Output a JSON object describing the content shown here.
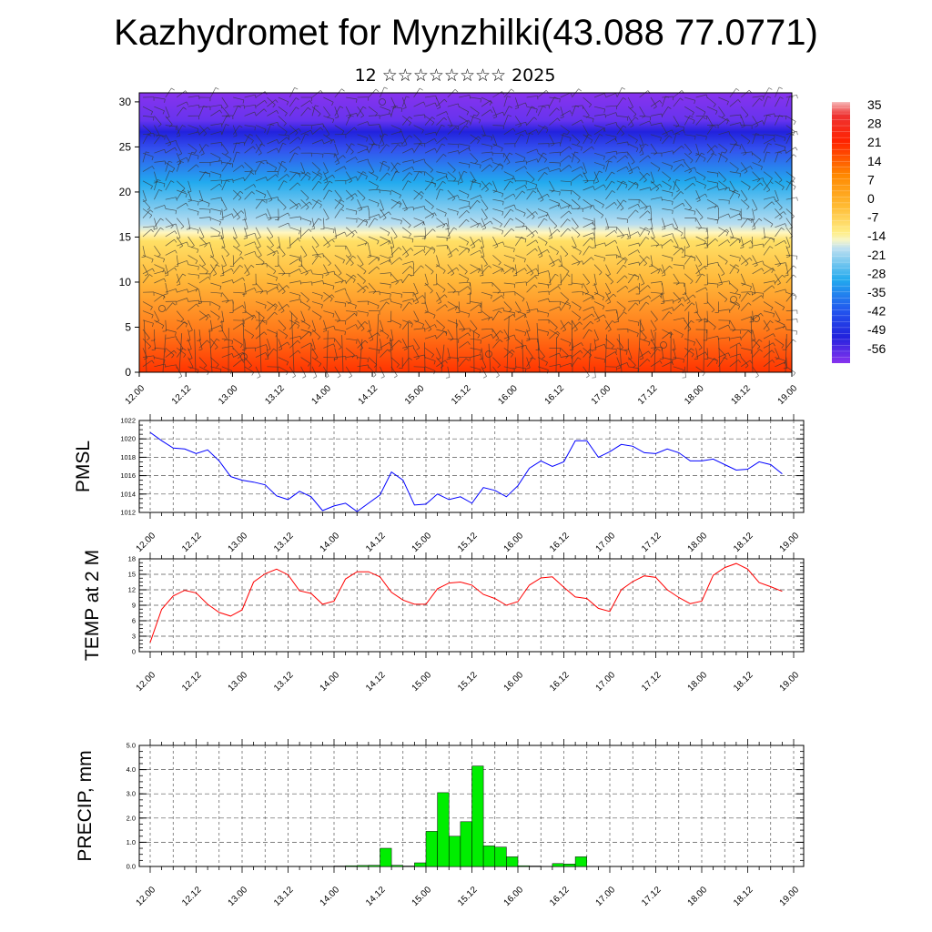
{
  "header": {
    "title": "Kazhydromet for Mynzhilki(43.088 77.0771)",
    "subtitle": "12 ☆☆☆☆☆☆☆☆ 2025"
  },
  "time_ticks": [
    "12.00",
    "12.12",
    "13.00",
    "13.12",
    "14.00",
    "14.12",
    "15.00",
    "15.12",
    "16.00",
    "16.12",
    "17.00",
    "17.12",
    "18.00",
    "18.12",
    "19.00"
  ],
  "chart_data": [
    {
      "type": "heatmap",
      "title": "",
      "xlabel": "",
      "ylabel": "",
      "ylim": [
        0,
        31
      ],
      "yticks": [
        "0",
        "5",
        "10",
        "15",
        "20",
        "25",
        "30"
      ],
      "x_categories": [
        "12.00",
        "12.12",
        "13.00",
        "13.12",
        "14.00",
        "14.12",
        "15.00",
        "15.12",
        "16.00",
        "16.12",
        "17.00",
        "17.12",
        "18.00",
        "18.12",
        "19.00"
      ],
      "colorbar": {
        "labels": [
          "35",
          "28",
          "21",
          "14",
          "7",
          "0",
          "-7",
          "-14",
          "-21",
          "-28",
          "-35",
          "-42",
          "-49",
          "-56"
        ],
        "range": [
          -60,
          38
        ]
      },
      "overlay": "wind barbs",
      "colors": {
        "warm": "#ff3300",
        "mid": "#ffe066",
        "cold": "#22aaee",
        "coldest": "#8833ee"
      }
    },
    {
      "type": "line",
      "ylabel": "PMSL",
      "ylim": [
        1012,
        1022
      ],
      "yticks": [
        "1012",
        "1014",
        "1016",
        "1018",
        "1020",
        "1022"
      ],
      "grid": true,
      "color": "#0000ff",
      "x": [
        0,
        3,
        6,
        9,
        12,
        15,
        18,
        21,
        24,
        27,
        30,
        33,
        36,
        39,
        42,
        45,
        48,
        51,
        54,
        57,
        60,
        63,
        66,
        69,
        72,
        75,
        78,
        81,
        84,
        87,
        90,
        93,
        96,
        99,
        102,
        105,
        108,
        111,
        114,
        117,
        120,
        123,
        126,
        129,
        132,
        135,
        138,
        141,
        144,
        147,
        150,
        153,
        156,
        159,
        162,
        165
      ],
      "values": [
        1020.7,
        1019.8,
        1019.0,
        1018.9,
        1018.4,
        1018.8,
        1017.6,
        1015.9,
        1015.5,
        1015.3,
        1015.0,
        1013.8,
        1013.4,
        1014.3,
        1013.7,
        1012.2,
        1012.7,
        1013.0,
        1012.1,
        1013.0,
        1013.9,
        1016.4,
        1015.5,
        1012.8,
        1012.9,
        1014.0,
        1013.4,
        1013.7,
        1013.0,
        1014.7,
        1014.4,
        1013.7,
        1014.9,
        1016.8,
        1017.6,
        1017.0,
        1017.5,
        1019.8,
        1019.8,
        1018.0,
        1018.6,
        1019.4,
        1019.2,
        1018.5,
        1018.4,
        1018.9,
        1018.5,
        1017.6,
        1017.6,
        1017.8,
        1017.2,
        1016.6,
        1016.7,
        1017.5,
        1017.2,
        1016.2
      ]
    },
    {
      "type": "line",
      "ylabel": "TEMP at 2 M",
      "ylim": [
        0,
        18
      ],
      "yticks": [
        "0",
        "3",
        "6",
        "9",
        "12",
        "15",
        "18"
      ],
      "grid": true,
      "color": "#ff0000",
      "x": [
        0,
        3,
        6,
        9,
        12,
        15,
        18,
        21,
        24,
        27,
        30,
        33,
        36,
        39,
        42,
        45,
        48,
        51,
        54,
        57,
        60,
        63,
        66,
        69,
        72,
        75,
        78,
        81,
        84,
        87,
        90,
        93,
        96,
        99,
        102,
        105,
        108,
        111,
        114,
        117,
        120,
        123,
        126,
        129,
        132,
        135,
        138,
        141,
        144,
        147,
        150,
        153,
        156,
        159,
        162,
        165
      ],
      "values": [
        1.8,
        8.2,
        10.8,
        11.9,
        11.4,
        9.2,
        7.6,
        6.9,
        8.1,
        13.5,
        15.1,
        16.0,
        14.9,
        11.8,
        11.3,
        9.2,
        9.8,
        14.1,
        15.5,
        15.5,
        14.5,
        11.5,
        10.0,
        9.2,
        9.2,
        12.2,
        13.3,
        13.5,
        12.9,
        11.1,
        10.3,
        9.0,
        9.7,
        12.9,
        14.3,
        14.5,
        12.5,
        10.6,
        10.3,
        8.4,
        7.8,
        12.0,
        13.6,
        14.7,
        14.4,
        12.0,
        10.5,
        9.3,
        9.8,
        14.8,
        16.3,
        17.1,
        16.0,
        13.4,
        12.6,
        11.7
      ]
    },
    {
      "type": "bar",
      "ylabel": "PRECIP, mm",
      "ylim": [
        0,
        5
      ],
      "yticks": [
        "0.0",
        "1.0",
        "2.0",
        "3.0",
        "4.0",
        "5.0"
      ],
      "grid": true,
      "color": "#00ee00",
      "x": [
        48,
        51,
        54,
        57,
        60,
        63,
        66,
        69,
        72,
        75,
        78,
        81,
        84,
        87,
        90,
        93,
        96,
        99,
        105,
        108,
        111
      ],
      "values": [
        0.02,
        0.03,
        0.04,
        0.05,
        0.75,
        0.05,
        0.02,
        0.15,
        1.45,
        3.05,
        1.25,
        1.85,
        4.15,
        0.85,
        0.8,
        0.4,
        0.03,
        0.02,
        0.12,
        0.1,
        0.4
      ]
    }
  ]
}
